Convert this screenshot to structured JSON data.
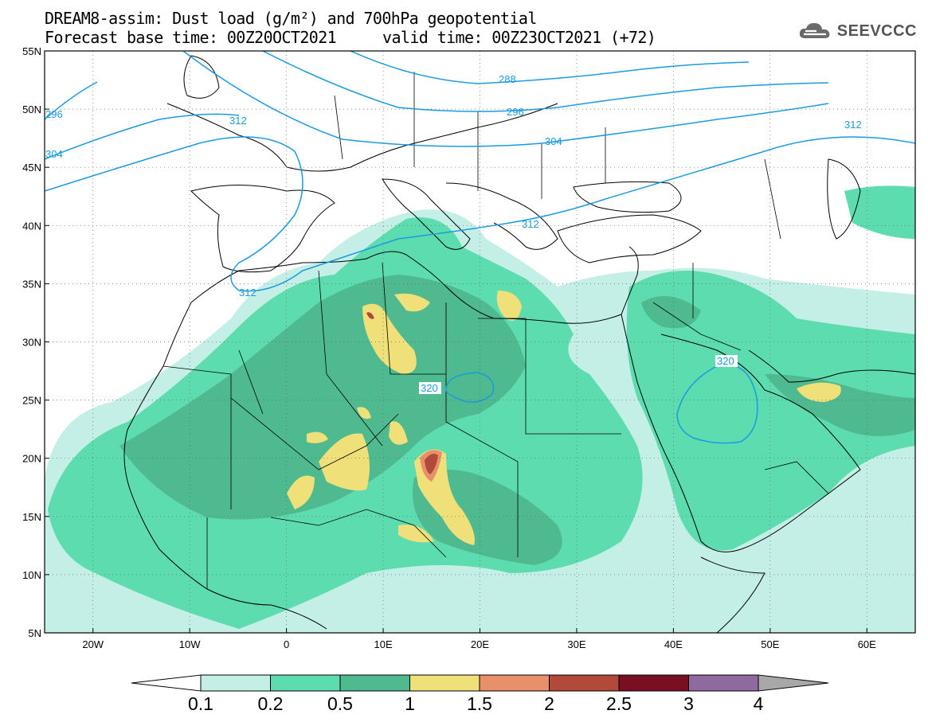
{
  "header": {
    "line1": "DREAM8-assim: Dust load (g/m²) and 700hPa geopotential",
    "line2": "Forecast base time: 00Z20OCT2021",
    "valid": "valid time: 00Z23OCT2021 (+72)"
  },
  "logo": {
    "text": "SEEVCCC",
    "icon": "cloud-icon"
  },
  "axes": {
    "lon_labels": [
      "20W",
      "10W",
      "0",
      "10E",
      "20E",
      "30E",
      "40E",
      "50E",
      "60E"
    ],
    "lon_values": [
      -20,
      -10,
      0,
      10,
      20,
      30,
      40,
      50,
      60
    ],
    "lat_labels": [
      "55N",
      "50N",
      "45N",
      "40N",
      "35N",
      "30N",
      "25N",
      "20N",
      "15N",
      "10N",
      "5N"
    ],
    "lat_values": [
      55,
      50,
      45,
      40,
      35,
      30,
      25,
      20,
      15,
      10,
      5
    ],
    "lon_range": [
      -25,
      65
    ],
    "lat_range": [
      5,
      55
    ]
  },
  "colorbar": {
    "labels": [
      "0.1",
      "0.2",
      "0.5",
      "1",
      "1.5",
      "2",
      "2.5",
      "3",
      "4"
    ],
    "colors": [
      "#c4efe6",
      "#5ddcaf",
      "#4fb98f",
      "#f0e07a",
      "#e8906a",
      "#b24a3c",
      "#7a0f24",
      "#8f6aa0"
    ],
    "over_color": "#a8a8a8",
    "under_color": "#ffffff"
  },
  "contours": {
    "labels": [
      "296",
      "304",
      "312",
      "288",
      "296",
      "304",
      "312",
      "312",
      "312",
      "320",
      "320"
    ],
    "line_color": "#1a9be0"
  }
}
